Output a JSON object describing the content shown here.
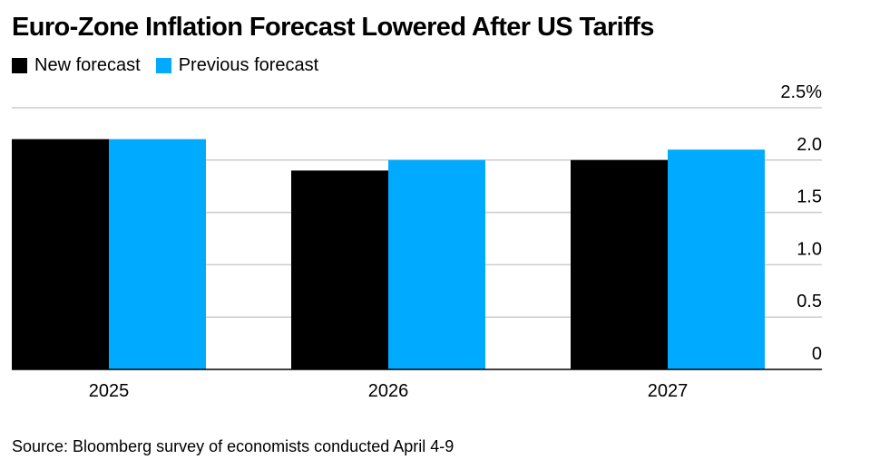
{
  "colors": {
    "new_forecast": "#000000",
    "previous_forecast": "#00aaff",
    "gridline": "#cccccc",
    "baseline": "#000000"
  },
  "chart_data": {
    "type": "bar",
    "title": "Euro-Zone Inflation Forecast Lowered After US Tariffs",
    "categories": [
      "2025",
      "2026",
      "2027"
    ],
    "series": [
      {
        "name": "New forecast",
        "values": [
          2.2,
          1.9,
          2.0
        ]
      },
      {
        "name": "Previous forecast",
        "values": [
          2.2,
          2.0,
          2.1
        ]
      }
    ],
    "xlabel": "",
    "ylabel": "",
    "ylim": [
      0,
      2.5
    ],
    "yticks": [
      {
        "value": 0,
        "label": "0"
      },
      {
        "value": 0.5,
        "label": "0.5"
      },
      {
        "value": 1.0,
        "label": "1.0"
      },
      {
        "value": 1.5,
        "label": "1.5"
      },
      {
        "value": 2.0,
        "label": "2.0"
      },
      {
        "value": 2.5,
        "label": "2.5%"
      }
    ],
    "y_axis_side": "right",
    "grid": true,
    "legend": "top-left",
    "source": "Source: Bloomberg survey of economists conducted April 4-9"
  }
}
